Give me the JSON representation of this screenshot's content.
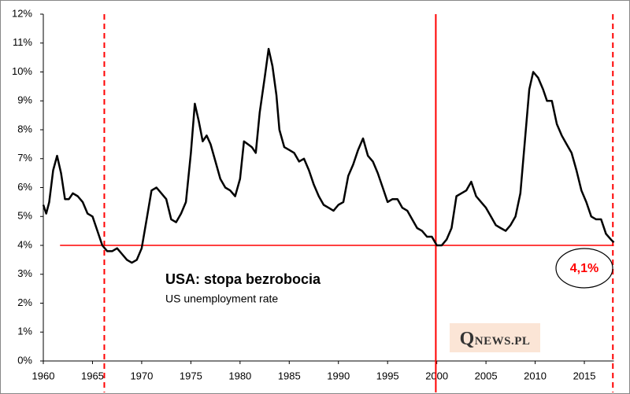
{
  "chart_data": {
    "type": "line",
    "title": "USA: stopa bezrobocia",
    "subtitle": "US unemployment  rate",
    "annotation": "4,1%",
    "logo": "QNEWS.PL",
    "color": "#000000",
    "x": [
      1960.0,
      1960.3,
      1960.6,
      1961.0,
      1961.4,
      1961.8,
      1962.2,
      1962.6,
      1963.0,
      1963.5,
      1964.0,
      1964.5,
      1965.0,
      1965.5,
      1966.0,
      1966.5,
      1967.0,
      1967.5,
      1968.0,
      1968.5,
      1969.0,
      1969.5,
      1970.0,
      1970.5,
      1971.0,
      1971.5,
      1972.0,
      1972.5,
      1973.0,
      1973.5,
      1974.0,
      1974.5,
      1975.0,
      1975.4,
      1975.8,
      1976.2,
      1976.6,
      1977.0,
      1977.5,
      1978.0,
      1978.5,
      1979.0,
      1979.5,
      1980.0,
      1980.4,
      1980.8,
      1981.2,
      1981.6,
      1982.0,
      1982.5,
      1982.9,
      1983.3,
      1983.7,
      1984.0,
      1984.5,
      1985.0,
      1985.5,
      1986.0,
      1986.5,
      1987.0,
      1987.5,
      1988.0,
      1988.5,
      1989.0,
      1989.5,
      1990.0,
      1990.5,
      1991.0,
      1991.5,
      1992.0,
      1992.5,
      1993.0,
      1993.5,
      1994.0,
      1994.5,
      1995.0,
      1995.5,
      1996.0,
      1996.5,
      1997.0,
      1997.5,
      1998.0,
      1998.5,
      1999.0,
      1999.5,
      2000.0,
      2000.5,
      2001.0,
      2001.5,
      2002.0,
      2002.5,
      2003.0,
      2003.5,
      2004.0,
      2004.5,
      2005.0,
      2005.5,
      2006.0,
      2006.5,
      2007.0,
      2007.5,
      2008.0,
      2008.5,
      2009.0,
      2009.4,
      2009.8,
      2010.3,
      2010.8,
      2011.2,
      2011.7,
      2012.2,
      2012.7,
      2013.2,
      2013.7,
      2014.2,
      2014.7,
      2015.2,
      2015.7,
      2016.2,
      2016.7,
      2017.2,
      2017.7,
      2018.0
    ],
    "values": [
      5.4,
      5.1,
      5.5,
      6.6,
      7.1,
      6.5,
      5.6,
      5.6,
      5.8,
      5.7,
      5.5,
      5.1,
      5.0,
      4.5,
      4.0,
      3.8,
      3.8,
      3.9,
      3.7,
      3.5,
      3.4,
      3.5,
      3.9,
      4.9,
      5.9,
      6.0,
      5.8,
      5.6,
      4.9,
      4.8,
      5.1,
      5.5,
      7.2,
      8.9,
      8.3,
      7.6,
      7.8,
      7.5,
      6.9,
      6.3,
      6.0,
      5.9,
      5.7,
      6.3,
      7.6,
      7.5,
      7.4,
      7.2,
      8.6,
      9.8,
      10.8,
      10.2,
      9.2,
      8.0,
      7.4,
      7.3,
      7.2,
      6.9,
      7.0,
      6.6,
      6.1,
      5.7,
      5.4,
      5.3,
      5.2,
      5.4,
      5.5,
      6.4,
      6.8,
      7.3,
      7.7,
      7.1,
      6.9,
      6.5,
      6.0,
      5.5,
      5.6,
      5.6,
      5.3,
      5.2,
      4.9,
      4.6,
      4.5,
      4.3,
      4.3,
      4.0,
      4.0,
      4.2,
      4.6,
      5.7,
      5.8,
      5.9,
      6.2,
      5.7,
      5.5,
      5.3,
      5.0,
      4.7,
      4.6,
      4.5,
      4.7,
      5.0,
      5.8,
      7.8,
      9.4,
      10.0,
      9.8,
      9.4,
      9.0,
      9.0,
      8.2,
      7.8,
      7.5,
      7.2,
      6.6,
      5.9,
      5.5,
      5.0,
      4.9,
      4.9,
      4.4,
      4.2,
      4.1
    ],
    "xlim": [
      1960,
      2018
    ],
    "xticks": [
      1960,
      1965,
      1970,
      1975,
      1980,
      1985,
      1990,
      1995,
      2000,
      2005,
      2010,
      2015
    ],
    "ylim": [
      0,
      12
    ],
    "yticks": [
      {
        "value": 0,
        "label": "0%"
      },
      {
        "value": 1,
        "label": "1%"
      },
      {
        "value": 2,
        "label": "2%"
      },
      {
        "value": 3,
        "label": "3%"
      },
      {
        "value": 4,
        "label": "4%"
      },
      {
        "value": 5,
        "label": "5%"
      },
      {
        "value": 6,
        "label": "6%"
      },
      {
        "value": 7,
        "label": "7%"
      },
      {
        "value": 8,
        "label": "8%"
      },
      {
        "value": 9,
        "label": "9%"
      },
      {
        "value": 10,
        "label": "10%"
      },
      {
        "value": 11,
        "label": "11%"
      },
      {
        "value": 12,
        "label": "12%"
      }
    ],
    "hlines": [
      {
        "value": 4,
        "from": 1961.7,
        "color": "#ff0000"
      }
    ],
    "vlines": [
      {
        "value": 1966.2,
        "style": "dashed",
        "color": "#ff0000"
      },
      {
        "value": 1999.9,
        "style": "solid",
        "color": "#ff0000"
      },
      {
        "value": 2017.9,
        "style": "dashed",
        "color": "#ff0000"
      }
    ]
  }
}
